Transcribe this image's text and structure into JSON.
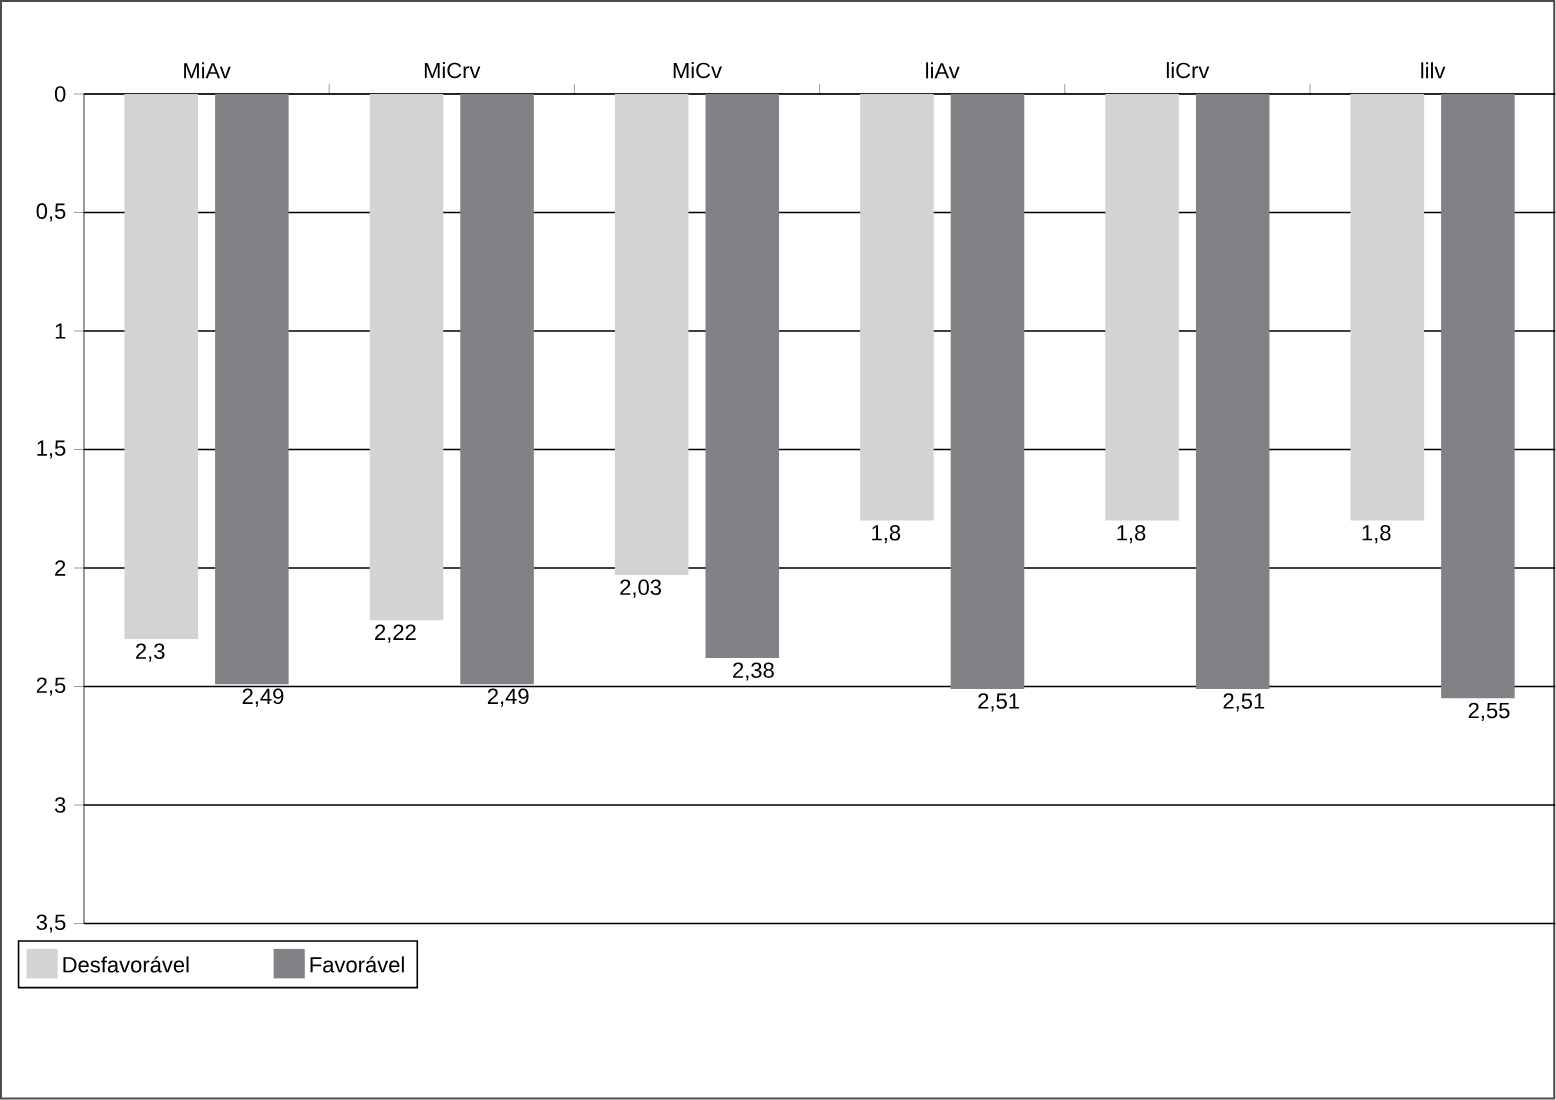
{
  "chart_data": {
    "type": "bar",
    "categories": [
      "MiAv",
      "MiCrv",
      "MiCv",
      "liAv",
      "liCrv",
      "lilv"
    ],
    "series": [
      {
        "name": "Desfavorável",
        "color": "#d1d3d4",
        "values": [
          2.3,
          2.22,
          2.03,
          1.8,
          1.8,
          1.8
        ],
        "value_labels": [
          "2,3",
          "2,22",
          "2,03",
          "1,8",
          "1,8",
          "1,8"
        ]
      },
      {
        "name": "Favorável",
        "color": "#808285",
        "values": [
          2.49,
          2.49,
          2.38,
          2.51,
          2.51,
          2.55
        ],
        "value_labels": [
          "2,49",
          "2,49",
          "2,38",
          "2,51",
          "2,51",
          "2,55"
        ]
      }
    ],
    "ylim": [
      3.5,
      0
    ],
    "yticks": [
      0,
      {
        "value": 0.5,
        "label": "0,5"
      },
      1,
      {
        "value": 1.5,
        "label": "1,5"
      },
      2,
      {
        "value": 2.5,
        "label": "2,5"
      },
      3,
      {
        "value": 3.5,
        "label": "3,5"
      }
    ],
    "grid": "y",
    "legend": "bottom left"
  }
}
